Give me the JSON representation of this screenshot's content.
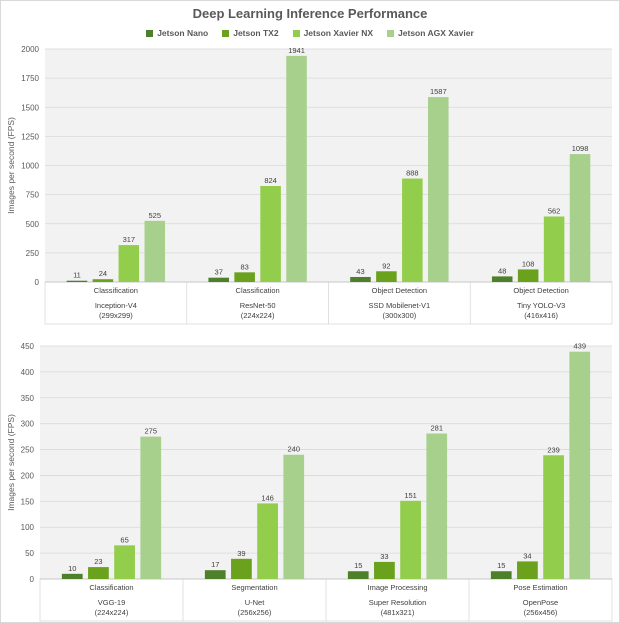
{
  "title": "Deep Learning Inference Performance",
  "legend": [
    {
      "name": "Jetson Nano",
      "color": "#4e7f2a"
    },
    {
      "name": "Jetson TX2",
      "color": "#6aa21e"
    },
    {
      "name": "Jetson Xavier NX",
      "color": "#92cd4b"
    },
    {
      "name": "Jetson AGX Xavier",
      "color": "#a8d08d"
    }
  ],
  "chart_data": [
    {
      "type": "bar",
      "ylabel": "Images per second (FPS)",
      "ylim": [
        0,
        2000
      ],
      "yticks": [
        0,
        250,
        500,
        750,
        1000,
        1250,
        1500,
        1750,
        2000
      ],
      "grid": true,
      "legend_position": "top",
      "categories": [
        {
          "task": "Classification",
          "model": "Inception-V4",
          "res": "(299x299)"
        },
        {
          "task": "Classification",
          "model": "ResNet-50",
          "res": "(224x224)"
        },
        {
          "task": "Object Detection",
          "model": "SSD Mobilenet-V1",
          "res": "(300x300)"
        },
        {
          "task": "Object Detection",
          "model": "Tiny YOLO-V3",
          "res": "(416x416)"
        }
      ],
      "series": [
        {
          "name": "Jetson Nano",
          "values": [
            11,
            37,
            43,
            48
          ]
        },
        {
          "name": "Jetson TX2",
          "values": [
            24,
            83,
            92,
            108
          ]
        },
        {
          "name": "Jetson Xavier NX",
          "values": [
            317,
            824,
            888,
            562
          ]
        },
        {
          "name": "Jetson AGX Xavier",
          "values": [
            525,
            1941,
            1587,
            1098
          ]
        }
      ]
    },
    {
      "type": "bar",
      "ylabel": "Images per second (FPS)",
      "ylim": [
        0,
        450
      ],
      "yticks": [
        0,
        50,
        100,
        150,
        200,
        250,
        300,
        350,
        400,
        450
      ],
      "grid": true,
      "categories": [
        {
          "task": "Classification",
          "model": "VGG-19",
          "res": "(224x224)"
        },
        {
          "task": "Segmentation",
          "model": "U-Net",
          "res": "(256x256)"
        },
        {
          "task": "Image Processing",
          "model": "Super Resolution",
          "res": "(481x321)"
        },
        {
          "task": "Pose Estimation",
          "model": "OpenPose",
          "res": "(256x456)"
        }
      ],
      "series": [
        {
          "name": "Jetson Nano",
          "values": [
            10,
            17,
            15,
            15
          ]
        },
        {
          "name": "Jetson TX2",
          "values": [
            23,
            39,
            33,
            34
          ]
        },
        {
          "name": "Jetson Xavier NX",
          "values": [
            65,
            146,
            151,
            239
          ]
        },
        {
          "name": "Jetson AGX Xavier",
          "values": [
            275,
            240,
            281,
            439
          ]
        }
      ]
    }
  ]
}
